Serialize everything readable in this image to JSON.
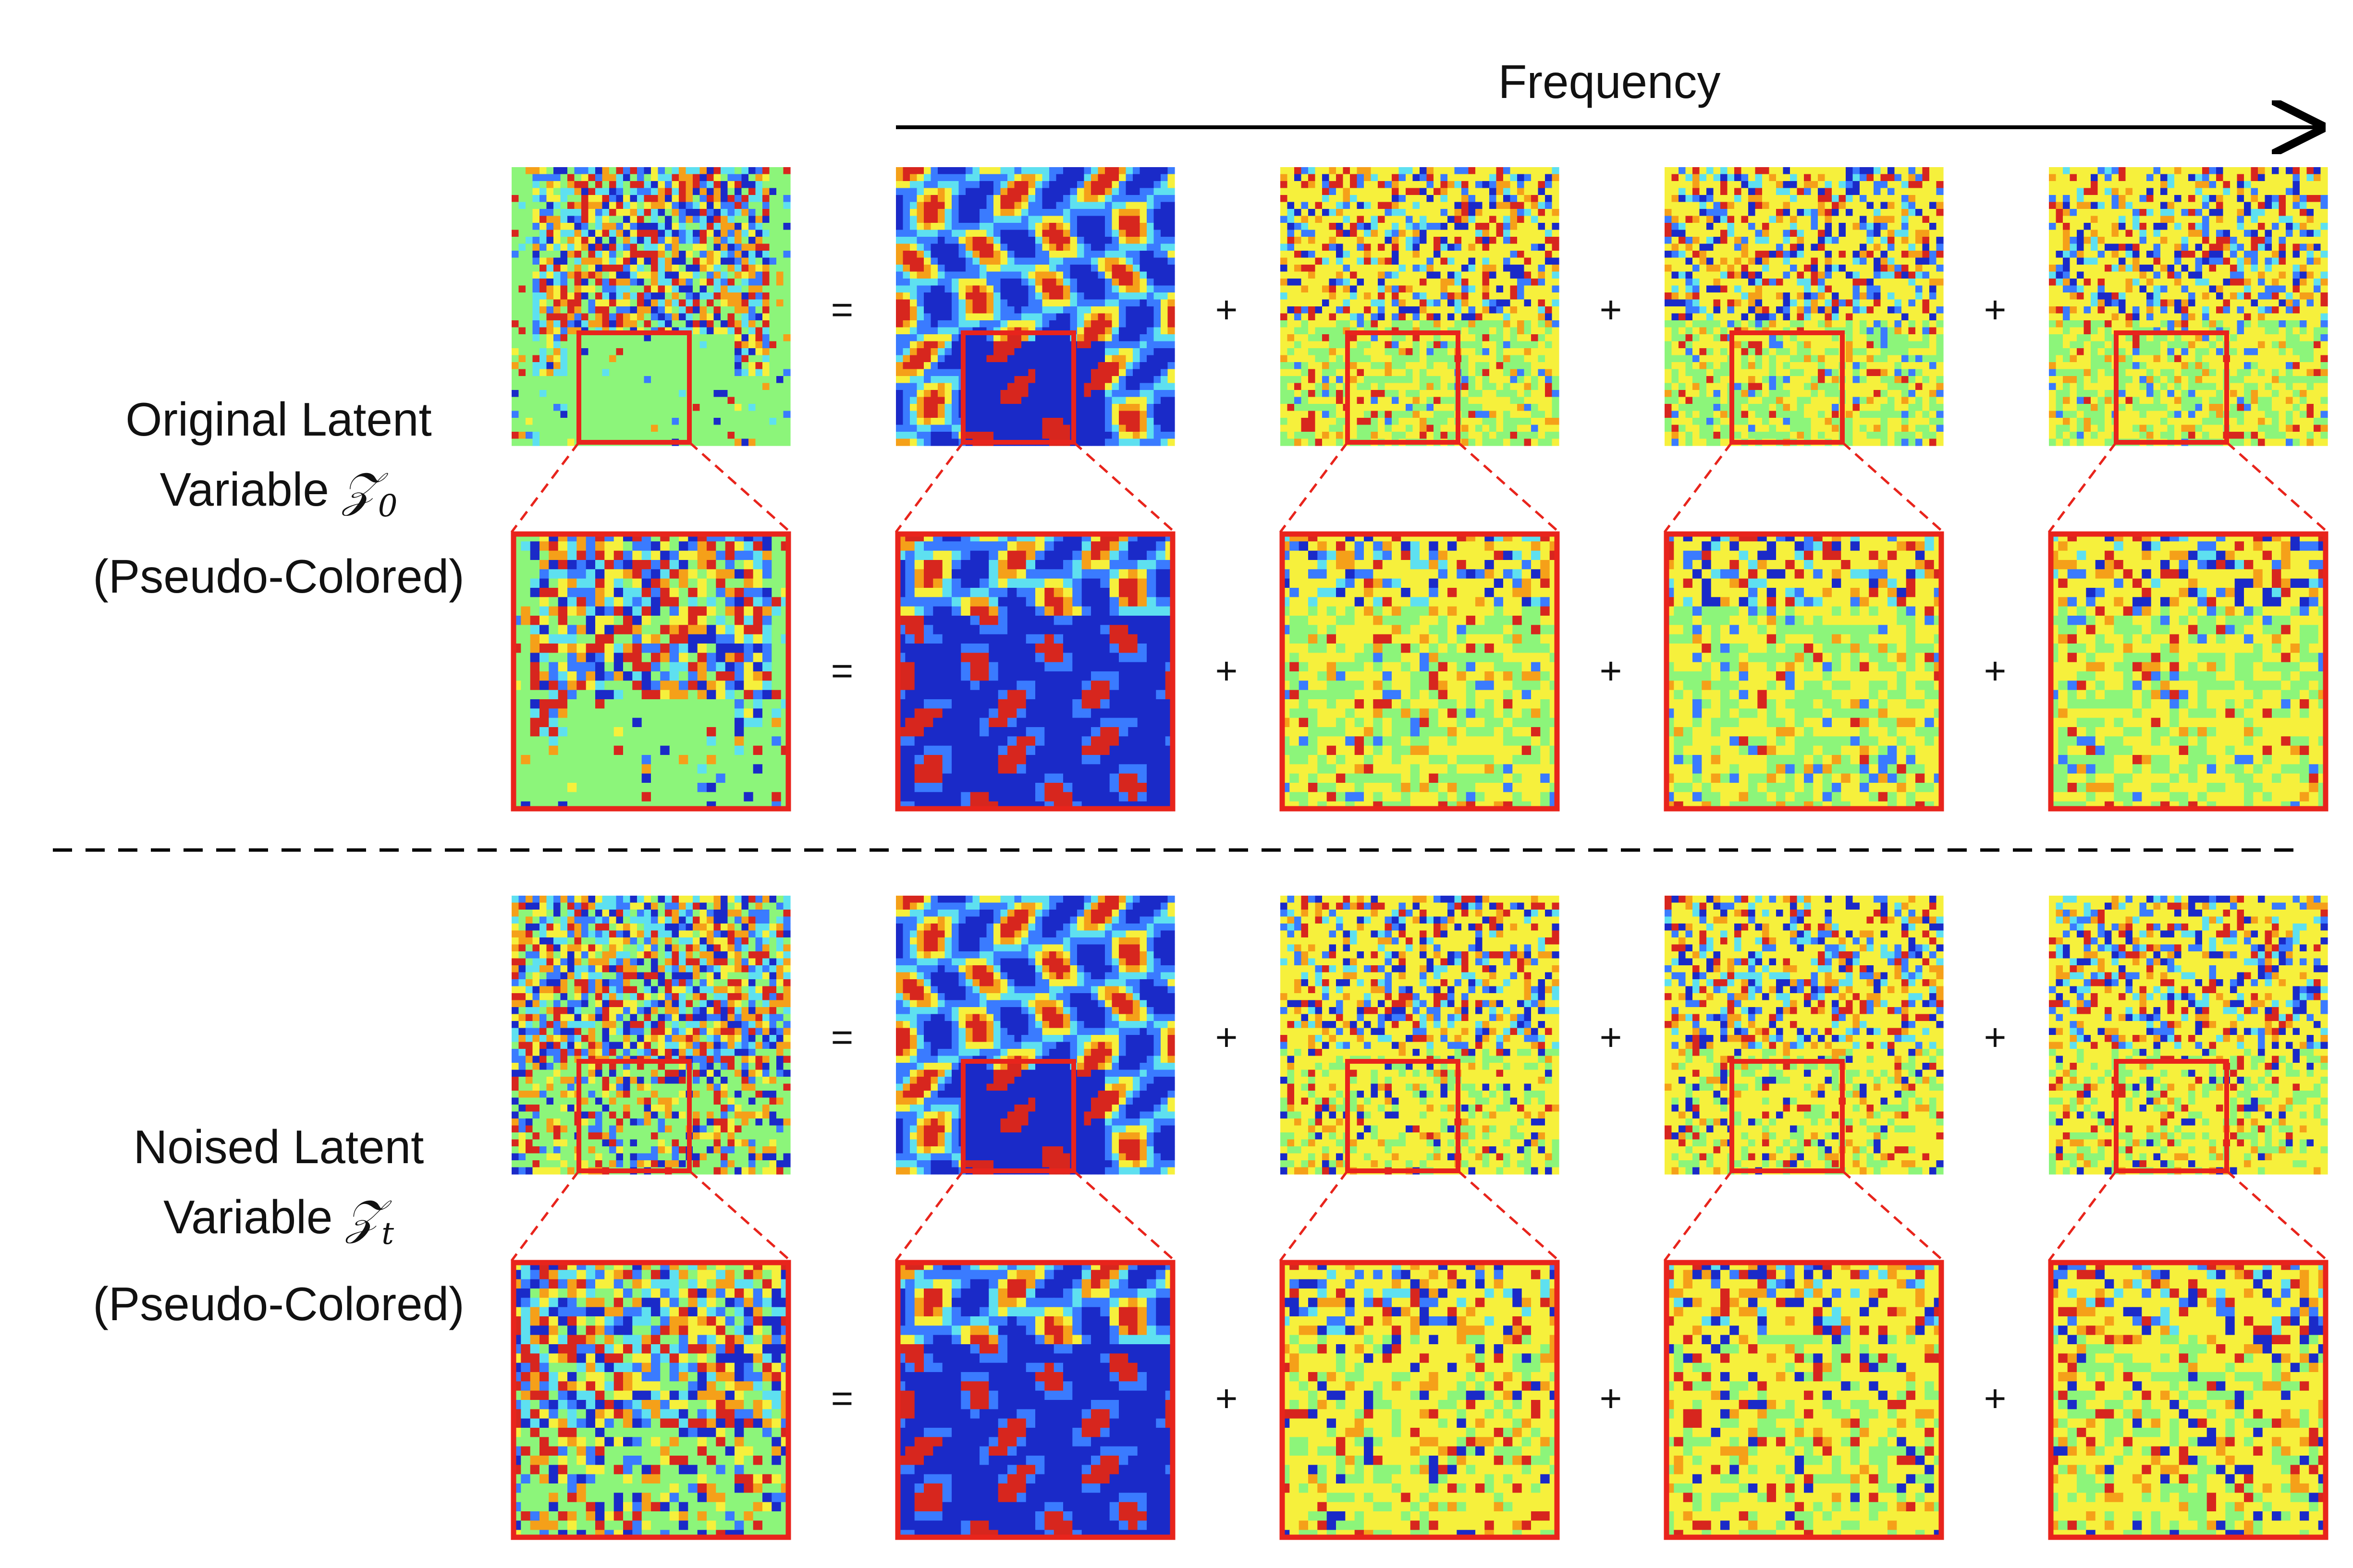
{
  "header": {
    "axis_label": "Frequency"
  },
  "rows": [
    {
      "label_line1": "Original Latent",
      "label_word": "Variable",
      "symbol": "𝒵",
      "subscript": "0",
      "label_line3": "(Pseudo-Colored)",
      "operators": [
        "=",
        "+",
        "+",
        "+"
      ],
      "zoom_operators": [
        "=",
        "+",
        "+",
        "+"
      ]
    },
    {
      "label_line1": "Noised Latent",
      "label_word": "Variable",
      "symbol": "𝒵",
      "subscript": "t",
      "label_line3": "(Pseudo-Colored)",
      "operators": [
        "=",
        "+",
        "+",
        "+"
      ],
      "zoom_operators": [
        "=",
        "+",
        "+",
        "+"
      ]
    }
  ],
  "panels": [
    {
      "kind": "original",
      "description": "latent-map"
    },
    {
      "kind": "low-frequency",
      "description": "band-1"
    },
    {
      "kind": "mid-frequency",
      "description": "band-2"
    },
    {
      "kind": "high-frequency",
      "description": "band-3"
    },
    {
      "kind": "highest-frequency",
      "description": "band-4"
    }
  ],
  "colors": {
    "highlight_box": "#e8241c",
    "arrow": "#000000",
    "separator": "#000000",
    "colormap": [
      "#1a2ac8",
      "#3a7bff",
      "#5ee0f0",
      "#8cf57a",
      "#f6f03c",
      "#f5a019",
      "#d7261e"
    ]
  }
}
